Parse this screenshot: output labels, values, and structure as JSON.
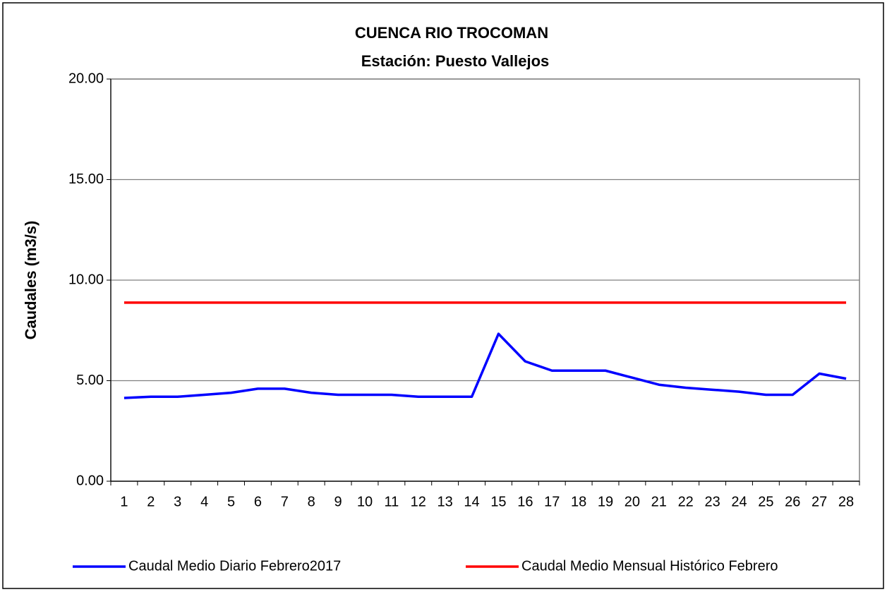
{
  "chart_data": {
    "type": "line",
    "title": "CUENCA RIO TROCOMAN",
    "subtitle": "Estación: Puesto Vallejos",
    "y_label": "Caudales (m3/s)",
    "categories": [
      "1",
      "2",
      "3",
      "4",
      "5",
      "6",
      "7",
      "8",
      "9",
      "10",
      "11",
      "12",
      "13",
      "14",
      "15",
      "16",
      "17",
      "18",
      "19",
      "20",
      "21",
      "22",
      "23",
      "24",
      "25",
      "26",
      "27",
      "28"
    ],
    "series": [
      {
        "name": "Caudal Medio Diario Febrero2017",
        "color": "#0000ff",
        "values": [
          4.14,
          4.2,
          4.2,
          4.3,
          4.4,
          4.6,
          4.6,
          4.4,
          4.3,
          4.3,
          4.3,
          4.2,
          4.2,
          4.2,
          7.33,
          5.96,
          5.5,
          5.5,
          5.5,
          5.15,
          4.8,
          4.65,
          4.55,
          4.45,
          4.3,
          4.3,
          5.35,
          5.1
        ]
      },
      {
        "name": "Caudal Medio Mensual Histórico Febrero",
        "color": "#ff0000",
        "values": [
          8.88,
          8.88,
          8.88,
          8.88,
          8.88,
          8.88,
          8.88,
          8.88,
          8.88,
          8.88,
          8.88,
          8.88,
          8.88,
          8.88,
          8.88,
          8.88,
          8.88,
          8.88,
          8.88,
          8.88,
          8.88,
          8.88,
          8.88,
          8.88,
          8.88,
          8.88,
          8.88,
          8.88
        ]
      }
    ],
    "ylim": [
      0,
      20
    ],
    "yticks": [
      {
        "value": 0,
        "label": "0.00"
      },
      {
        "value": 5,
        "label": "5.00"
      },
      {
        "value": 10,
        "label": "10.00"
      },
      {
        "value": 15,
        "label": "15.00"
      },
      {
        "value": 20,
        "label": "20.00"
      }
    ],
    "grid": true,
    "legend": "bottom"
  }
}
